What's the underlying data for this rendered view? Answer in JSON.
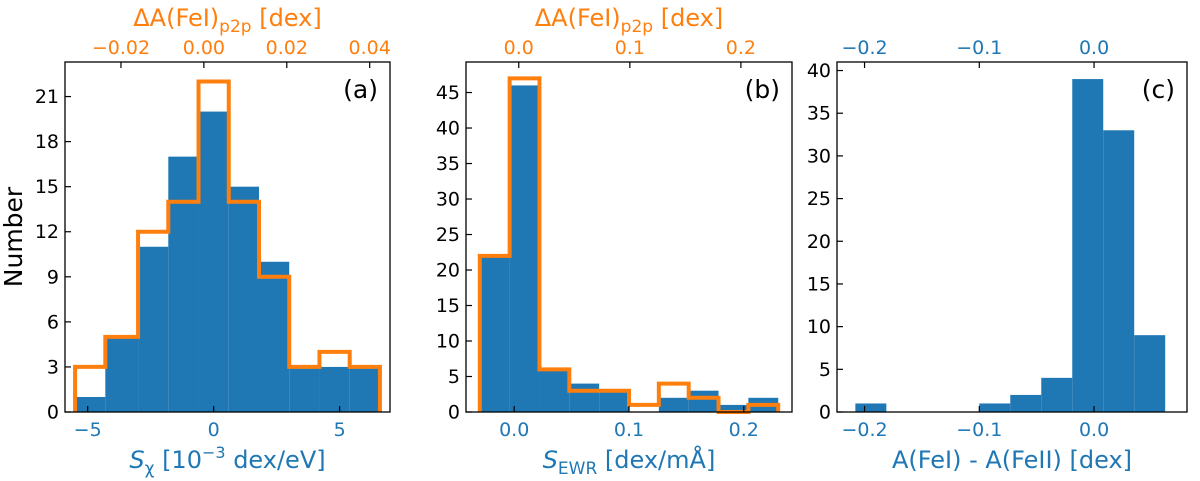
{
  "colors": {
    "blue": "#1f77b4",
    "orange": "#ff7f0e",
    "axis": "#000000"
  },
  "chart_data": [
    {
      "id": "a",
      "type": "bar",
      "panel_label": "(a)",
      "ylabel": "Number",
      "xlabel": {
        "sym": "S",
        "sub": "χ",
        "pre": " [10",
        "sup": "−3",
        "post": " dex/eV]"
      },
      "top_label": {
        "pre": "ΔA(FeI)",
        "sub": "p2p",
        "post": " [dex]"
      },
      "xlim": [
        -5.9,
        7.0
      ],
      "ylim": [
        0,
        23.3
      ],
      "xticks": [
        -5,
        0,
        5
      ],
      "xtick_labels": [
        "−5",
        "0",
        "5"
      ],
      "yticks": [
        0,
        3,
        6,
        9,
        12,
        15,
        18,
        21
      ],
      "ytick_labels": [
        "0",
        "3",
        "6",
        "9",
        "12",
        "15",
        "18",
        "21"
      ],
      "top_range": [
        -0.0335,
        0.0449
      ],
      "top_ticks": [
        -0.02,
        0.0,
        0.02,
        0.04
      ],
      "top_tick_labels": [
        "−0.02",
        "0.00",
        "0.02",
        "0.04"
      ],
      "series": [
        {
          "name": "S_chi distribution",
          "kind": "filled",
          "edges": [
            -5.5,
            -4.3,
            -3.0,
            -1.8,
            -0.6,
            0.6,
            1.8,
            3.0,
            4.2,
            5.4,
            6.6
          ],
          "values": [
            1,
            5,
            11,
            17,
            20,
            15,
            10,
            3,
            3,
            3
          ]
        },
        {
          "name": "delta A(FeI) p2p distribution",
          "kind": "step",
          "edges": [
            -5.5,
            -4.3,
            -3.0,
            -1.8,
            -0.6,
            0.6,
            1.8,
            3.0,
            4.2,
            5.4,
            6.6
          ],
          "values": [
            3,
            5,
            12,
            14,
            22,
            14,
            9,
            3,
            4,
            3
          ]
        }
      ]
    },
    {
      "id": "b",
      "type": "bar",
      "panel_label": "(b)",
      "ylabel": "",
      "xlabel": {
        "sym": "S",
        "sub": "EWR",
        "pre": " [dex/m",
        "sup": "",
        "post": "Å]"
      },
      "top_label": {
        "pre": "ΔA(FeI)",
        "sub": "p2p",
        "post": " [dex]"
      },
      "xlim": [
        -0.042,
        0.242
      ],
      "ylim": [
        0,
        49.3
      ],
      "xticks": [
        0.0,
        0.1,
        0.2
      ],
      "xtick_labels": [
        "0.0",
        "0.1",
        "0.2"
      ],
      "yticks": [
        0,
        5,
        10,
        15,
        20,
        25,
        30,
        35,
        40,
        45
      ],
      "ytick_labels": [
        "0",
        "5",
        "10",
        "15",
        "20",
        "25",
        "30",
        "35",
        "40",
        "45"
      ],
      "top_range": [
        -0.0475,
        0.246
      ],
      "top_ticks": [
        0.0,
        0.1,
        0.2
      ],
      "top_tick_labels": [
        "0.0",
        "0.1",
        "0.2"
      ],
      "series": [
        {
          "name": "S_EWR distribution",
          "kind": "filled",
          "edges": [
            -0.03,
            -0.004,
            0.022,
            0.048,
            0.074,
            0.1,
            0.126,
            0.152,
            0.178,
            0.204,
            0.23
          ],
          "values": [
            22,
            46,
            6,
            4,
            3,
            0,
            2,
            3,
            1,
            2
          ]
        },
        {
          "name": "delta A(FeI) p2p distribution",
          "kind": "step",
          "edges": [
            -0.03,
            -0.004,
            0.022,
            0.048,
            0.074,
            0.1,
            0.126,
            0.152,
            0.178,
            0.204,
            0.23
          ],
          "values": [
            22,
            47,
            6,
            3,
            3,
            1,
            4,
            2,
            0,
            1
          ]
        }
      ]
    },
    {
      "id": "c",
      "type": "bar",
      "panel_label": "(c)",
      "ylabel": "",
      "xlabel_plain": "A(FeI) - A(FeII) [dex]",
      "xlim": [
        -0.224,
        0.081
      ],
      "ylim": [
        0,
        41.0
      ],
      "xticks": [
        -0.2,
        -0.1,
        0.0
      ],
      "xtick_labels": [
        "−0.2",
        "−0.1",
        "0.0"
      ],
      "yticks": [
        0,
        5,
        10,
        15,
        20,
        25,
        30,
        35,
        40
      ],
      "ytick_labels": [
        "0",
        "5",
        "10",
        "15",
        "20",
        "25",
        "30",
        "35",
        "40"
      ],
      "top_range": [
        -0.224,
        0.081
      ],
      "top_ticks": [
        -0.2,
        -0.1,
        0.0
      ],
      "top_tick_labels": [
        "−0.2",
        "−0.1",
        "0.0"
      ],
      "series": [
        {
          "name": "A(FeI) - A(FeII) distribution",
          "kind": "filled",
          "edges": [
            -0.208,
            -0.181,
            -0.154,
            -0.127,
            -0.1,
            -0.073,
            -0.046,
            -0.019,
            0.008,
            0.035,
            0.062
          ],
          "values": [
            1,
            0,
            0,
            0,
            1,
            2,
            4,
            39,
            33,
            9
          ]
        }
      ]
    }
  ]
}
